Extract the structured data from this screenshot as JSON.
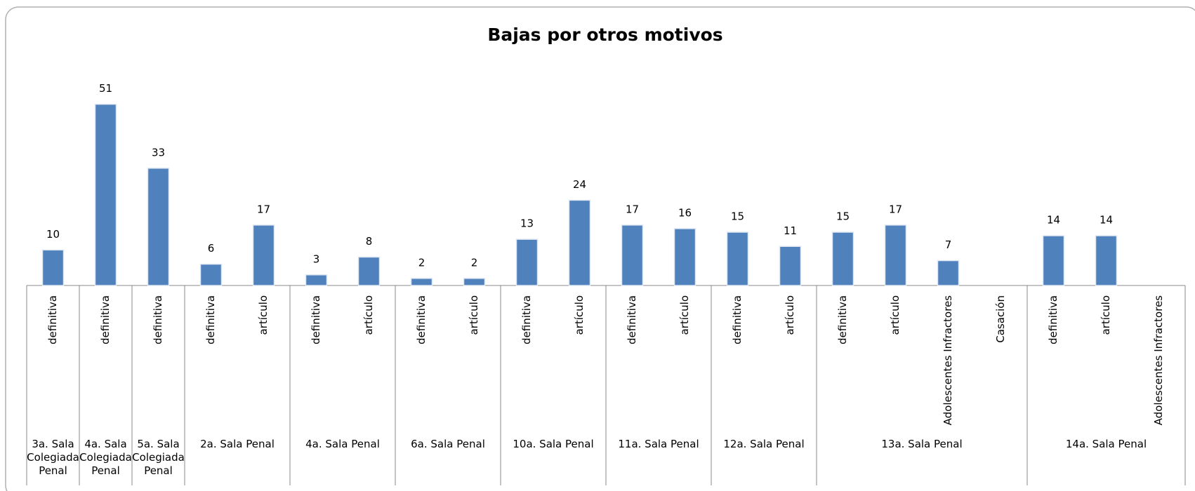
{
  "chart_data": {
    "type": "bar",
    "title": "Bajas por otros motivos",
    "categories": [
      "definitiva",
      "definitiva",
      "definitiva",
      "definitiva",
      "artículo",
      "definitiva",
      "artículo",
      "definitiva",
      "artículo",
      "definitiva",
      "artículo",
      "definitiva",
      "artículo",
      "definitiva",
      "artículo",
      "definitiva",
      "artículo",
      "Adolescentes Infractores",
      "Casación",
      "definitiva",
      "artículo",
      "Adolescentes Infractores"
    ],
    "values": [
      10,
      51,
      33,
      6,
      17,
      3,
      8,
      2,
      2,
      13,
      24,
      17,
      16,
      15,
      11,
      15,
      17,
      7,
      null,
      14,
      14,
      null
    ],
    "groups": [
      {
        "name": "3a. Sala Colegiada Penal",
        "span": 1
      },
      {
        "name": "4a. Sala Colegiada Penal",
        "span": 1
      },
      {
        "name": "5a. Sala Colegiada Penal",
        "span": 1
      },
      {
        "name": "2a. Sala Penal",
        "span": 2
      },
      {
        "name": "4a. Sala Penal",
        "span": 2
      },
      {
        "name": "6a. Sala Penal",
        "span": 2
      },
      {
        "name": "10a. Sala Penal",
        "span": 2
      },
      {
        "name": "11a. Sala Penal",
        "span": 2
      },
      {
        "name": "12a. Sala Penal",
        "span": 2
      },
      {
        "name": "13a. Sala Penal",
        "span": 4
      },
      {
        "name": "14a. Sala Penal",
        "span": 3
      }
    ],
    "color": "#4f81bd",
    "ylim": [
      0,
      60
    ]
  }
}
